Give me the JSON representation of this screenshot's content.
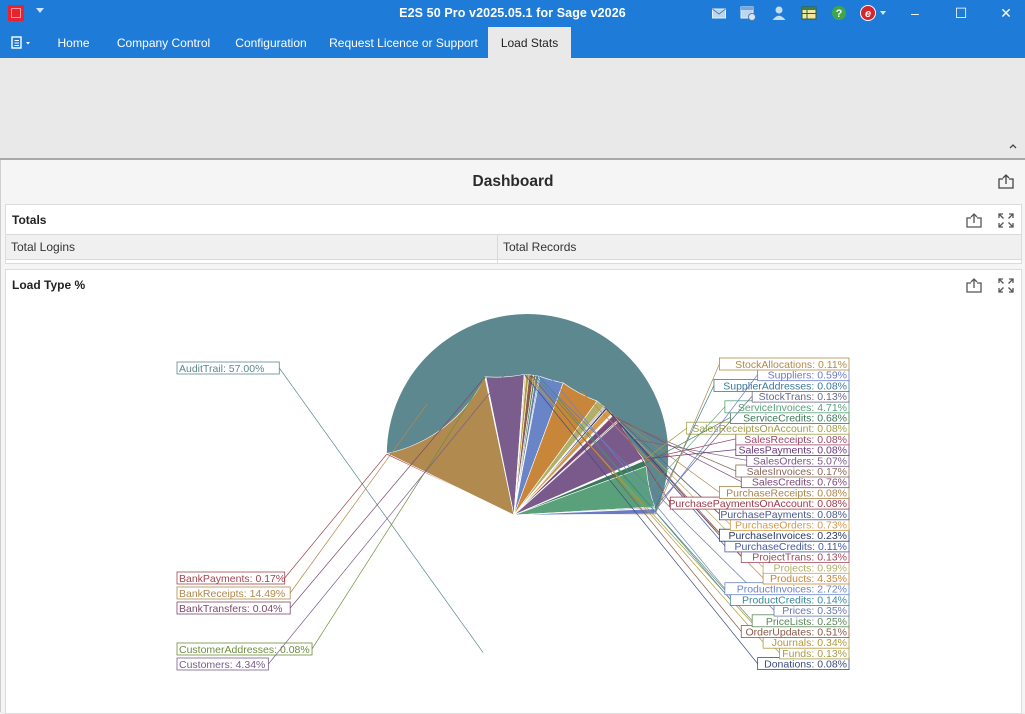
{
  "window": {
    "title": "E2S 50 Pro v2025.05.1 for Sage v2026",
    "icons": [
      "app-icon",
      "mail-icon",
      "calendar-icon",
      "user-icon",
      "spreadsheet-icon",
      "help-icon",
      "brand-icon",
      "minimize-icon",
      "maximize-icon",
      "close-icon"
    ],
    "minimize_glyph": "–",
    "maximize_glyph": "☐",
    "close_glyph": "✕"
  },
  "ribbon": {
    "tabs": [
      {
        "label": "Home",
        "active": false
      },
      {
        "label": "Company Control",
        "active": false
      },
      {
        "label": "Configuration",
        "active": false
      },
      {
        "label": "Request Licence or Support",
        "active": false
      },
      {
        "label": "Load Stats",
        "active": true
      }
    ]
  },
  "dashboard": {
    "title": "Dashboard",
    "totals": {
      "title": "Totals",
      "columns": [
        "Total Logins",
        "Total Records"
      ]
    },
    "load_type": {
      "title": "Load Type %"
    }
  },
  "colors": {
    "titlebar": "#1e7bd8",
    "ribbon": "#e9e9e9",
    "accent": "#e8232f"
  },
  "chart_data": {
    "type": "pie",
    "title": "",
    "slices": [
      {
        "label": "AuditTrail",
        "value": 57.0,
        "color": "#5e8890"
      },
      {
        "label": "BankPayments",
        "value": 0.17,
        "color": "#a0454e"
      },
      {
        "label": "BankReceipts",
        "value": 14.49,
        "color": "#b08a4f"
      },
      {
        "label": "BankTransfers",
        "value": 0.04,
        "color": "#7d4a6a"
      },
      {
        "label": "CustomerAddresses",
        "value": 0.08,
        "color": "#6e8e3f"
      },
      {
        "label": "Customers",
        "value": 4.34,
        "color": "#7a5d8c"
      },
      {
        "label": "Donations",
        "value": 0.08,
        "color": "#3c4c80"
      },
      {
        "label": "Funds",
        "value": 0.13,
        "color": "#a89a4a"
      },
      {
        "label": "Journals",
        "value": 0.34,
        "color": "#b39a3a"
      },
      {
        "label": "OrderUpdates",
        "value": 0.51,
        "color": "#8a5a4a"
      },
      {
        "label": "PriceLists",
        "value": 0.25,
        "color": "#5a8a5a"
      },
      {
        "label": "Prices",
        "value": 0.35,
        "color": "#6a7aaa"
      },
      {
        "label": "ProductCredits",
        "value": 0.14,
        "color": "#3a8a9a"
      },
      {
        "label": "ProductInvoices",
        "value": 2.72,
        "color": "#6a84c8"
      },
      {
        "label": "Products",
        "value": 4.35,
        "color": "#c8863a"
      },
      {
        "label": "Projects",
        "value": 0.99,
        "color": "#b0b06a"
      },
      {
        "label": "ProjectTrans",
        "value": 0.13,
        "color": "#a04a5a"
      },
      {
        "label": "PurchaseCredits",
        "value": 0.11,
        "color": "#4a5aa0"
      },
      {
        "label": "PurchaseInvoices",
        "value": 0.23,
        "color": "#2a3a6a"
      },
      {
        "label": "PurchaseOrders",
        "value": 0.73,
        "color": "#d49a4a"
      },
      {
        "label": "PurchasePayments",
        "value": 0.08,
        "color": "#4a5a8a"
      },
      {
        "label": "PurchasePaymentsOnAccount",
        "value": 0.08,
        "color": "#a03a4a"
      },
      {
        "label": "PurchaseReceipts",
        "value": 0.08,
        "color": "#a8864a"
      },
      {
        "label": "SalesCredits",
        "value": 0.76,
        "color": "#7a4a7a"
      },
      {
        "label": "SalesInvoices",
        "value": 0.17,
        "color": "#8a6a5a"
      },
      {
        "label": "SalesOrders",
        "value": 5.07,
        "color": "#7a5a8a"
      },
      {
        "label": "SalesPayments",
        "value": 0.08,
        "color": "#6a3a7a"
      },
      {
        "label": "SalesReceipts",
        "value": 0.08,
        "color": "#a04a6a"
      },
      {
        "label": "SalesReceiptsOnAccount",
        "value": 0.08,
        "color": "#a0a04a"
      },
      {
        "label": "ServiceCredits",
        "value": 0.68,
        "color": "#3a7a5a"
      },
      {
        "label": "ServiceInvoices",
        "value": 4.71,
        "color": "#5aa07a"
      },
      {
        "label": "StockTrans",
        "value": 0.13,
        "color": "#6a6a8a"
      },
      {
        "label": "SupplierAddresses",
        "value": 0.08,
        "color": "#3a7a9a"
      },
      {
        "label": "Suppliers",
        "value": 0.59,
        "color": "#6a7aca"
      },
      {
        "label": "StockAllocations",
        "value": 0.11,
        "color": "#b08a4a"
      }
    ],
    "legend": "none",
    "label_format": "{label}: {value}%"
  }
}
